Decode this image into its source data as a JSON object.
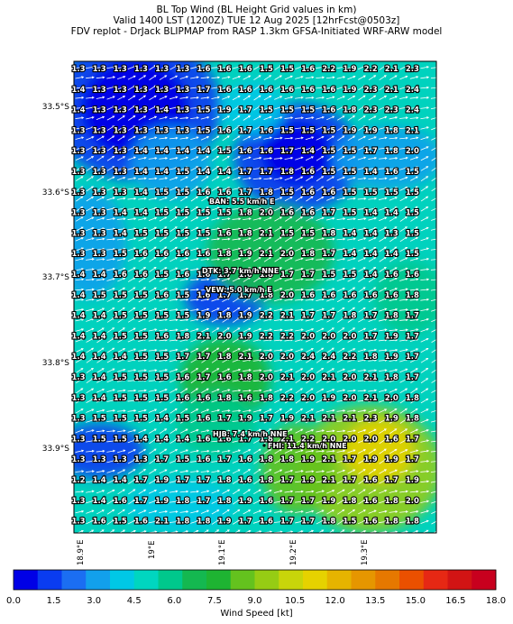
{
  "header": {
    "line1": "BL Top Wind (BL Height Grid values in km)",
    "line2": "Valid 1400 LST (1200Z) TUE 12 Aug 2025 [12hrFcst@0503z]",
    "line3": "FDV replot - DrJack BLIPMAP from RASP 1.3km GFSA-Initiated WRF-ARW model"
  },
  "map": {
    "lat_labels": [
      "33.5°S",
      "33.6°S",
      "33.7°S",
      "33.8°S",
      "33.9°S"
    ],
    "lon_labels": [
      "18.9°E",
      "19°E",
      "19.1°E",
      "19.2°E",
      "19.3°E"
    ],
    "grid": [
      [
        1.3,
        1.3,
        1.3,
        1.3,
        1.3,
        1.3,
        1.6,
        1.6,
        1.6,
        1.5,
        1.5,
        1.6,
        2.2,
        1.9,
        2.2,
        2.1,
        2.3
      ],
      [
        1.4,
        1.3,
        1.3,
        1.3,
        1.3,
        1.3,
        1.7,
        1.6,
        1.6,
        1.6,
        1.6,
        1.6,
        1.6,
        1.9,
        2.3,
        2.1,
        2.4
      ],
      [
        1.4,
        1.3,
        1.3,
        1.3,
        1.4,
        1.3,
        1.5,
        1.9,
        1.7,
        1.5,
        1.5,
        1.5,
        1.6,
        1.8,
        2.3,
        2.3,
        2.4
      ],
      [
        1.3,
        1.3,
        1.3,
        1.3,
        1.3,
        1.3,
        1.5,
        1.6,
        1.7,
        1.6,
        1.5,
        1.5,
        1.5,
        1.9,
        1.9,
        1.8,
        2.1
      ],
      [
        1.3,
        1.3,
        1.3,
        1.4,
        1.4,
        1.4,
        1.4,
        1.5,
        1.6,
        1.6,
        1.7,
        1.4,
        1.5,
        1.5,
        1.7,
        1.8,
        2.0
      ],
      [
        1.3,
        1.3,
        1.3,
        1.4,
        1.4,
        1.5,
        1.4,
        1.4,
        1.7,
        1.7,
        1.8,
        1.6,
        1.5,
        1.5,
        1.4,
        1.6,
        1.5
      ],
      [
        1.3,
        1.3,
        1.3,
        1.4,
        1.5,
        1.5,
        1.6,
        1.6,
        1.7,
        1.8,
        1.5,
        1.6,
        1.6,
        1.5,
        1.5,
        1.5,
        1.5
      ],
      [
        1.3,
        1.3,
        1.4,
        1.4,
        1.5,
        1.5,
        1.5,
        1.5,
        1.8,
        2.0,
        1.6,
        1.6,
        1.7,
        1.5,
        1.4,
        1.4,
        1.5
      ],
      [
        1.3,
        1.3,
        1.4,
        1.5,
        1.5,
        1.5,
        1.5,
        1.6,
        1.8,
        2.1,
        1.5,
        1.5,
        1.8,
        1.4,
        1.4,
        1.3,
        1.5
      ],
      [
        1.3,
        1.3,
        1.5,
        1.6,
        1.6,
        1.6,
        1.6,
        1.8,
        1.9,
        2.1,
        2.0,
        1.8,
        1.7,
        1.4,
        1.4,
        1.4,
        1.5
      ],
      [
        1.4,
        1.4,
        1.6,
        1.6,
        1.5,
        1.6,
        1.6,
        1.7,
        1.6,
        1.8,
        1.7,
        1.7,
        1.5,
        1.5,
        1.4,
        1.6,
        1.6
      ],
      [
        1.4,
        1.5,
        1.5,
        1.5,
        1.6,
        1.5,
        1.6,
        1.7,
        1.7,
        1.8,
        2.0,
        1.6,
        1.6,
        1.6,
        1.6,
        1.6,
        1.8
      ],
      [
        1.4,
        1.4,
        1.5,
        1.5,
        1.5,
        1.5,
        1.9,
        1.8,
        1.9,
        2.2,
        2.1,
        1.7,
        1.7,
        1.8,
        1.7,
        1.8,
        1.7
      ],
      [
        1.4,
        1.4,
        1.5,
        1.5,
        1.6,
        1.8,
        2.1,
        2.0,
        1.9,
        2.2,
        2.2,
        2.0,
        2.0,
        2.0,
        1.7,
        1.9,
        1.7
      ],
      [
        1.4,
        1.4,
        1.4,
        1.5,
        1.5,
        1.7,
        1.7,
        1.8,
        2.1,
        2.0,
        2.0,
        2.4,
        2.4,
        2.2,
        1.8,
        1.9,
        1.7
      ],
      [
        1.3,
        1.4,
        1.5,
        1.5,
        1.5,
        1.6,
        1.7,
        1.6,
        1.8,
        2.0,
        2.1,
        2.0,
        2.1,
        2.0,
        2.1,
        1.8,
        1.7
      ],
      [
        1.3,
        1.4,
        1.5,
        1.5,
        1.5,
        1.6,
        1.6,
        1.8,
        1.6,
        1.8,
        2.2,
        2.0,
        1.9,
        2.0,
        2.1,
        2.0,
        1.8
      ],
      [
        1.3,
        1.5,
        1.5,
        1.5,
        1.4,
        1.5,
        1.6,
        1.7,
        1.9,
        1.7,
        1.9,
        2.1,
        2.1,
        2.1,
        2.3,
        1.9,
        1.8
      ],
      [
        1.3,
        1.5,
        1.5,
        1.4,
        1.4,
        1.4,
        1.6,
        1.6,
        1.7,
        1.8,
        2.1,
        2.2,
        2.0,
        2.0,
        2.0,
        1.6,
        1.7
      ],
      [
        1.3,
        1.3,
        1.3,
        1.3,
        1.7,
        1.5,
        1.6,
        1.7,
        1.6,
        1.8,
        1.8,
        1.9,
        2.1,
        1.7,
        1.9,
        1.9,
        1.7
      ],
      [
        1.2,
        1.4,
        1.4,
        1.7,
        1.9,
        1.7,
        1.7,
        1.8,
        1.6,
        1.8,
        1.7,
        1.9,
        2.1,
        1.7,
        1.6,
        1.7,
        1.9
      ],
      [
        1.3,
        1.4,
        1.6,
        1.7,
        1.9,
        1.8,
        1.7,
        1.8,
        1.9,
        1.6,
        1.7,
        1.7,
        1.9,
        1.8,
        1.6,
        1.8,
        2.0
      ],
      [
        1.3,
        1.6,
        1.5,
        1.6,
        2.1,
        1.8,
        1.8,
        1.9,
        1.7,
        1.6,
        1.7,
        1.7,
        1.8,
        1.5,
        1.6,
        1.8,
        1.8
      ]
    ],
    "sites": [
      {
        "label": "BAN: 5.5 km/h E"
      },
      {
        "label": "DTK: 3.7 km/h NNE"
      },
      {
        "label": "VEW: 5.0 km/h E"
      },
      {
        "label": "HJB: 7.4 km/h NNE"
      },
      {
        "label": "FHI: 11.4 km/h NNE"
      }
    ]
  },
  "colorbar": {
    "label": "Wind Speed [kt]",
    "ticks": [
      "0.0",
      "1.5",
      "3.0",
      "4.5",
      "6.0",
      "7.5",
      "9.0",
      "10.5",
      "12.0",
      "13.5",
      "15.0",
      "16.5",
      "18.0"
    ],
    "colors": [
      "#0000e6",
      "#0a3cf0",
      "#1b6ef2",
      "#12a0ec",
      "#00c8e6",
      "#00d6c0",
      "#00c88c",
      "#14b850",
      "#1eb432",
      "#64c21e",
      "#96cc14",
      "#c8d50a",
      "#e6d200",
      "#e6b400",
      "#e69600",
      "#e67800",
      "#eb5000",
      "#e62814",
      "#d21414",
      "#c8001e"
    ]
  }
}
